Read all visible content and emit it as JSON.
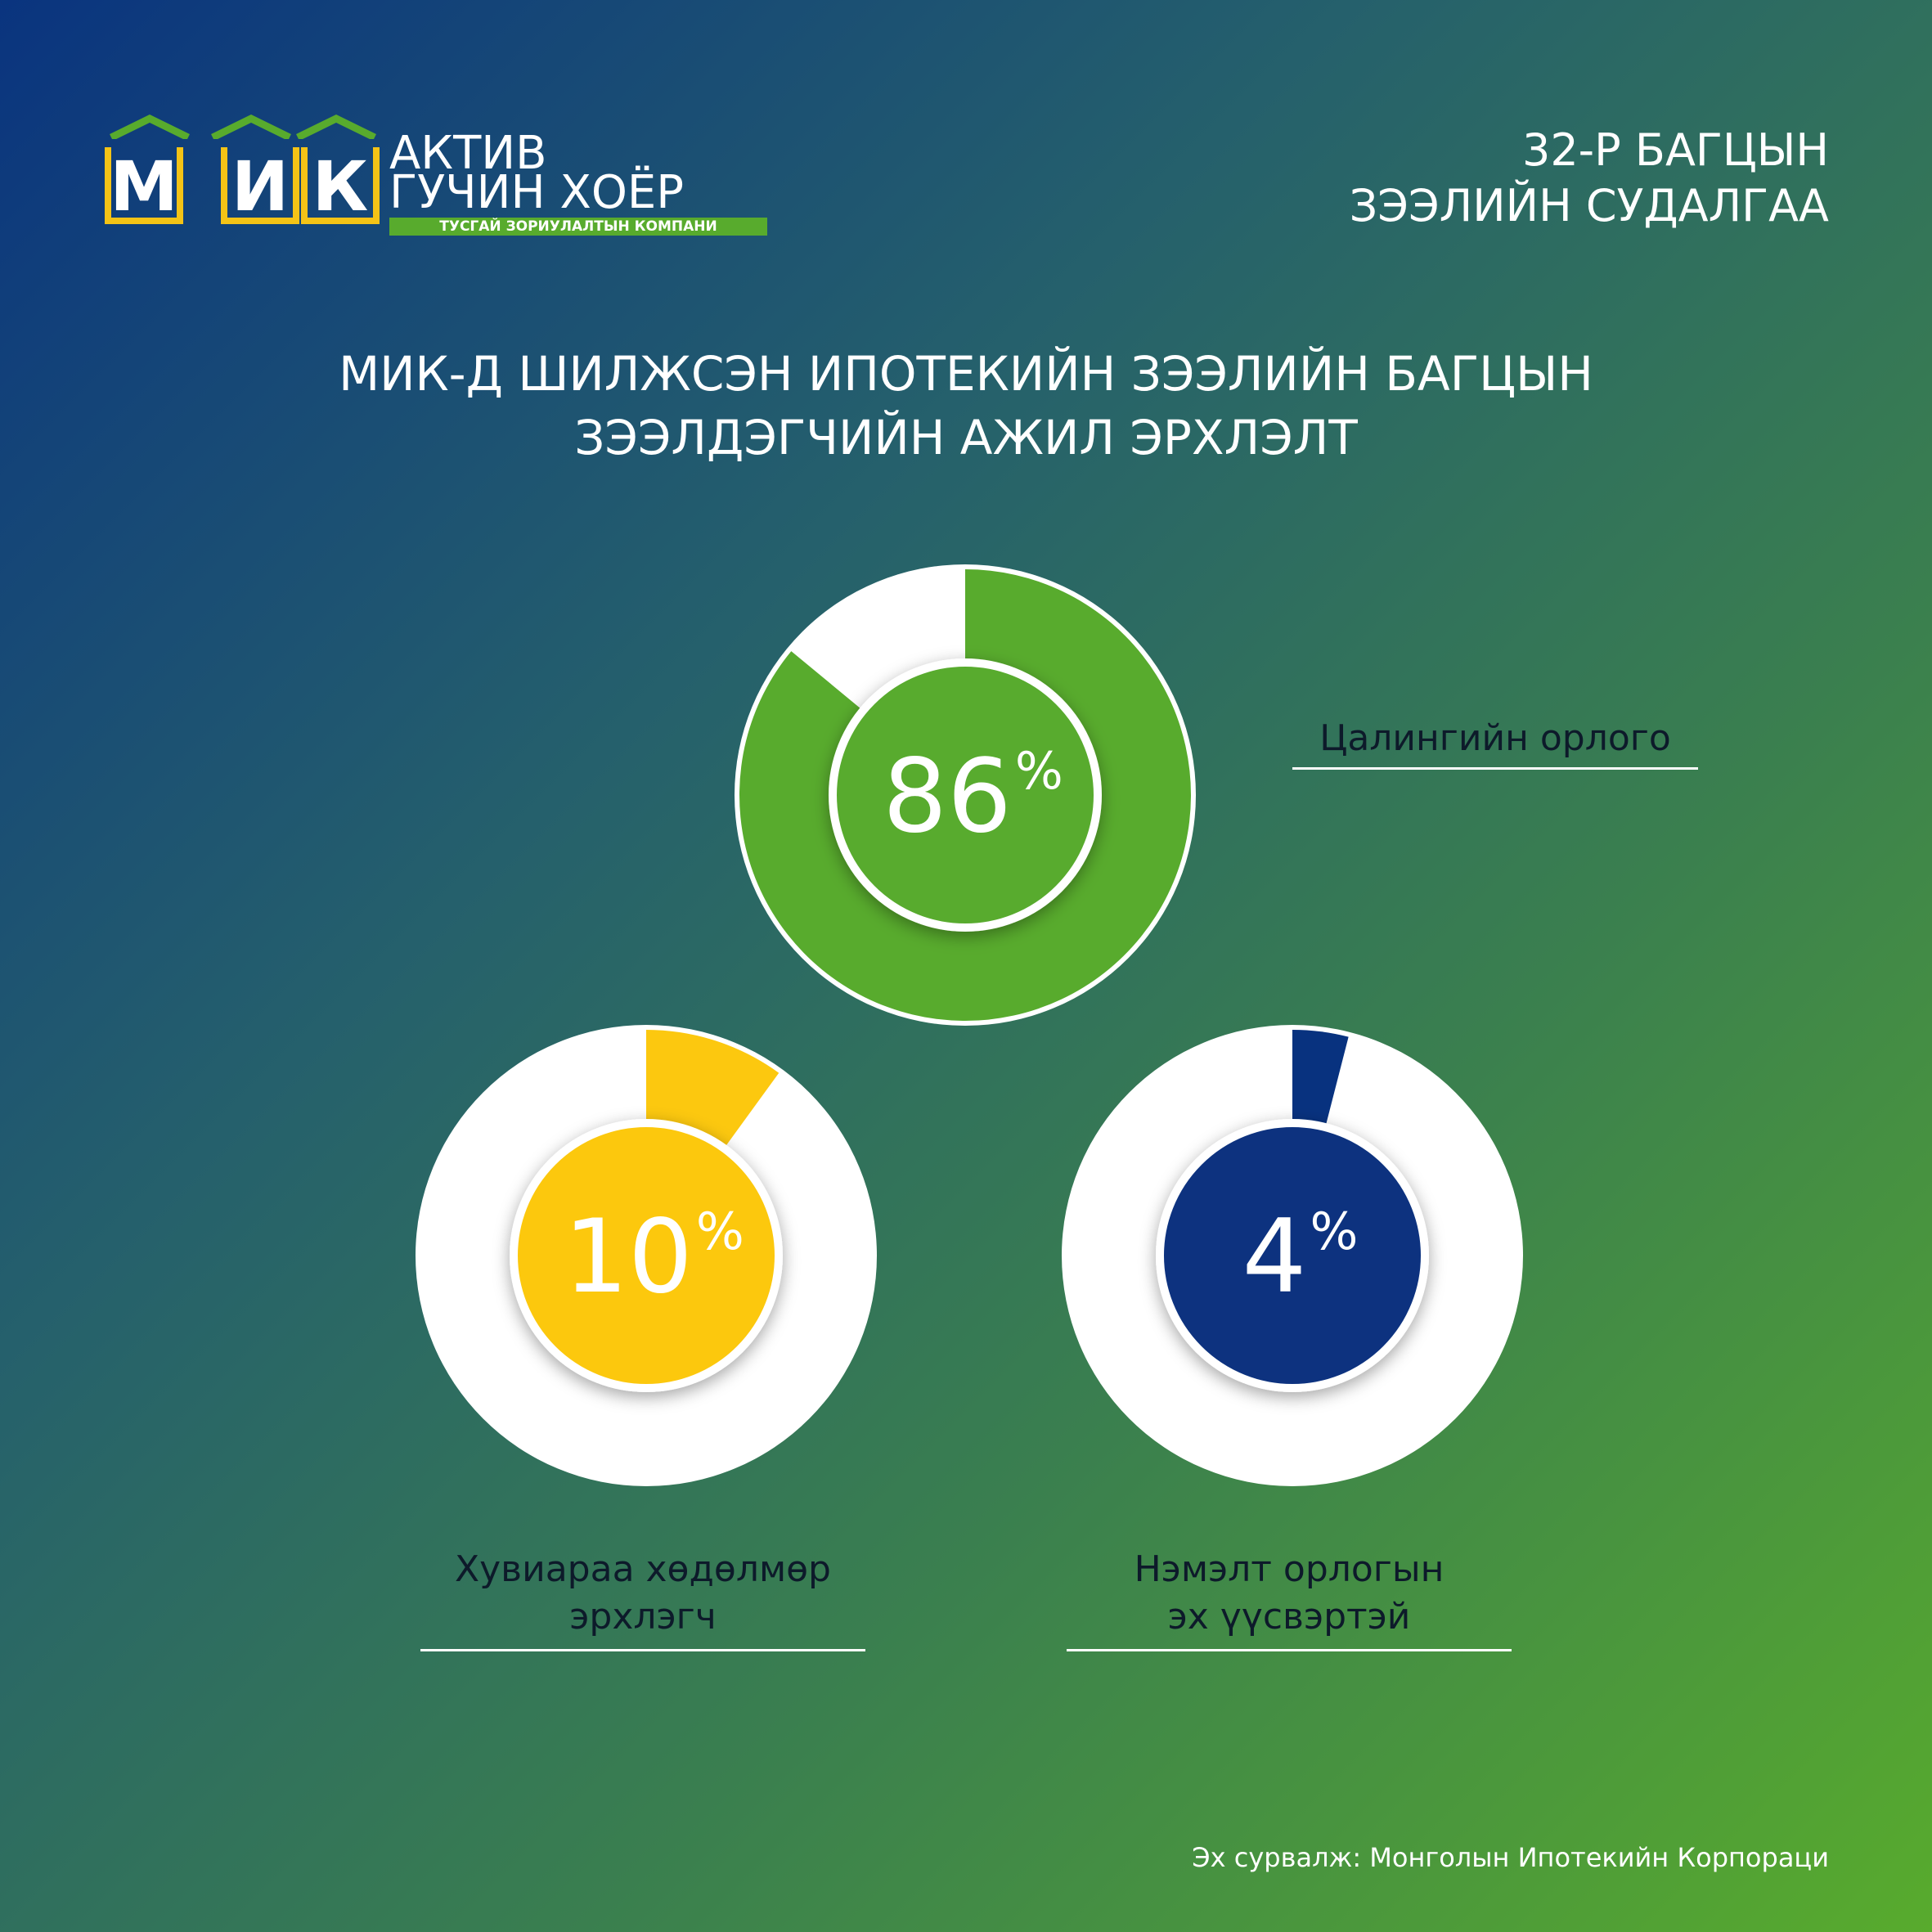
{
  "logo": {
    "letters": [
      "М",
      "И",
      "К"
    ],
    "line1": "АКТИВ",
    "line2": "ГУЧИН ХОЁР",
    "tagline": "ТУСГАЙ ЗОРИУЛАЛТЫН КОМПАНИ"
  },
  "header": {
    "line1": "32-Р БАГЦЫН",
    "line2": "ЗЭЭЛИЙН СУДАЛГАА"
  },
  "title": {
    "line1": "МИК-Д ШИЛЖСЭН ИПОТЕКИЙН ЗЭЭЛИЙН БАГЦЫН",
    "line2": "ЗЭЭЛДЭГЧИЙН АЖИЛ ЭРХЛЭЛТ"
  },
  "chart_data": {
    "type": "pie",
    "unit": "%",
    "categories": [
      "Цалингийн орлого",
      "Хувиараа хөдөлмөр эрхлэгч",
      "Нэмэлт орлогын эх үүсвэртэй"
    ],
    "values": [
      86,
      10,
      4
    ],
    "value_labels": [
      "86",
      "10",
      "4"
    ],
    "colors": [
      "#58ab2d",
      "#fcc80f",
      "#08327f"
    ],
    "ring_color": "#ffffff"
  },
  "labels": {
    "top": "Цалингийн орлого",
    "left_line1": "Хувиараа хөдөлмөр",
    "left_line2": "эрхлэгч",
    "right_line1": "Нэмэлт орлогын",
    "right_line2": "эх үүсвэртэй"
  },
  "source": "Эх сурвалж: Монголын Ипотекийн Корпораци"
}
